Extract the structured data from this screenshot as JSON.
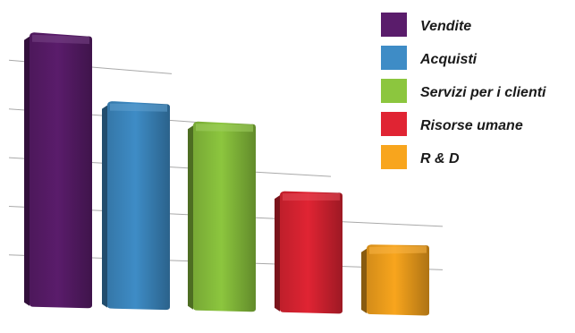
{
  "chart_data": {
    "type": "bar",
    "title": "",
    "xlabel": "",
    "ylabel": "",
    "grid": true,
    "legend_position": "top-right",
    "ylim": [
      0,
      6
    ],
    "categories": [
      "Vendite",
      "Acquisti",
      "Servizi per i clienti",
      "Risorse umane",
      "R & D"
    ],
    "values": [
      5.6,
      4.3,
      4.0,
      2.6,
      1.5
    ],
    "colors": [
      "#5a1c6b",
      "#3e8cc6",
      "#8cc63e",
      "#e02433",
      "#f8a51d"
    ],
    "legend": [
      {
        "label": "Vendite",
        "color": "#5a1c6b"
      },
      {
        "label": "Acquisti",
        "color": "#3e8cc6"
      },
      {
        "label": "Servizi per i clienti",
        "color": "#8cc63e"
      },
      {
        "label": "Risorse umane",
        "color": "#e02433"
      },
      {
        "label": "R & D",
        "color": "#f8a51d"
      }
    ]
  }
}
